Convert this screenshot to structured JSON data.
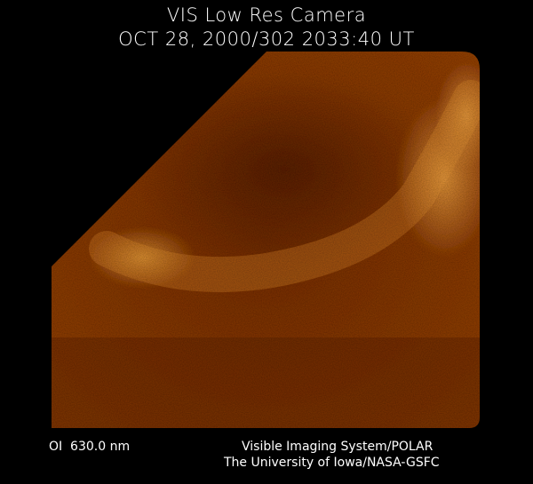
{
  "header": {
    "title": "VIS Low Res Camera",
    "timestamp": "OCT 28, 2000/302 2033:40 UT"
  },
  "footer": {
    "filter": "OI  630.0 nm",
    "credit_line1": "Visible Imaging System/POLAR",
    "credit_line2": "The University of Iowa/NASA-GSFC"
  },
  "colors": {
    "background": "#000000",
    "aurora_dim": "#6a2a05",
    "aurora_bright": "#e89a30",
    "text": "#ffffff"
  }
}
